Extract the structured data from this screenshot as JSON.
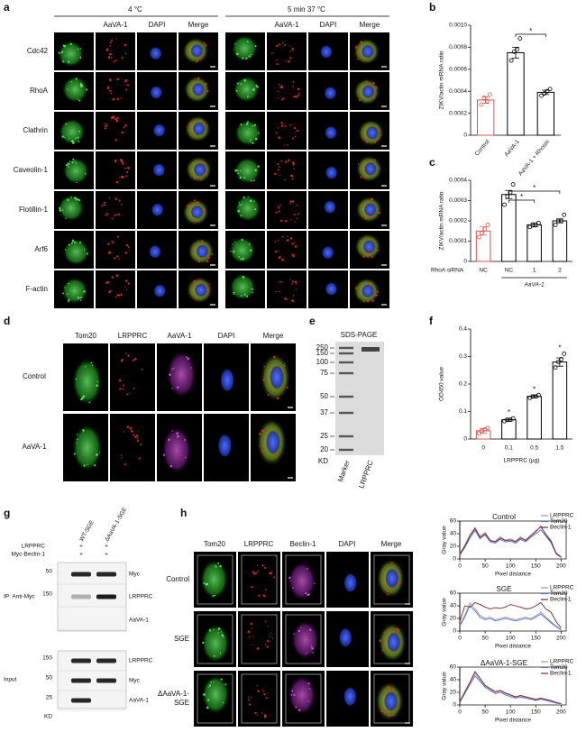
{
  "panel_labels": [
    "a",
    "b",
    "c",
    "d",
    "e",
    "f",
    "g",
    "h"
  ],
  "panel_a": {
    "groups": [
      "4 °C",
      "5 min 37 °C"
    ],
    "columns": [
      "AaVA-1",
      "DAPI",
      "Merge"
    ],
    "rows": [
      "Cdc42",
      "RhoA",
      "Clathrin",
      "Caveolin-1",
      "Flotillin-1",
      "Arf6",
      "F-actin"
    ]
  },
  "panel_d": {
    "columns": [
      "Tom20",
      "LRPPRC",
      "AaVA-1",
      "DAPI",
      "Merge"
    ],
    "rows": [
      "Control",
      "AaVA-1"
    ]
  },
  "panel_e": {
    "title": "SDS-PAGE",
    "markers": [
      250,
      150,
      100,
      75,
      50,
      37,
      25,
      20
    ],
    "unit": "KD",
    "lanes": [
      "Marker",
      "LRPPRC"
    ]
  },
  "panel_g": {
    "lanes": [
      "WT-SGE",
      "ΔAaVA-1-SGE"
    ],
    "conditions": [
      {
        "label": "LRPPRC",
        "marks": [
          "+",
          "+"
        ]
      },
      {
        "label": "Myc-Beclin-1",
        "marks": [
          "+",
          "+"
        ]
      }
    ],
    "sections": [
      {
        "label": "IP: Anti-Myc",
        "blots": [
          {
            "marker": 50,
            "label": "Myc"
          },
          {
            "marker": 150,
            "label": "LRPPRC"
          },
          {
            "label": "AaVA-1"
          }
        ]
      },
      {
        "label": "Input",
        "blots": [
          {
            "marker": 150,
            "label": "LRPPRC"
          },
          {
            "marker": 50,
            "label": "Myc"
          },
          {
            "marker": 25,
            "label": "AaVA-1"
          }
        ]
      }
    ],
    "unit": "KD"
  },
  "panel_h": {
    "columns": [
      "Tom20",
      "LRPPRC",
      "Beclin-1",
      "DAPI",
      "Merge"
    ],
    "rows": [
      "Control",
      "SGE",
      "ΔAaVA-1-SGE"
    ]
  },
  "chart_data": [
    {
      "type": "bar",
      "y_label": "ZIKV/actin mRNA ratio",
      "categories": [
        "Control",
        "AaVA-1",
        "AaVA-1 + Rhosin"
      ],
      "values": [
        0.00032,
        0.00075,
        0.00039
      ],
      "errors": [
        3e-05,
        5e-05,
        2e-05
      ],
      "points": [
        [
          0.00028,
          0.00034,
          0.00031,
          0.00037
        ],
        [
          0.00068,
          0.00076,
          0.00078,
          0.00088
        ],
        [
          0.00036,
          0.00038,
          0.0004,
          0.00042
        ]
      ],
      "colors": [
        "#d9534f",
        "#000000",
        "#000000"
      ],
      "significance": [
        "*"
      ],
      "ylim": [
        0,
        0.001
      ],
      "yticks": [
        0,
        0.0002,
        0.0004,
        0.0006,
        0.0008,
        {
          "value": 0.001,
          "label": "0.0010"
        }
      ]
    },
    {
      "type": "bar",
      "y_label": "ZIKV/actin mRNA ratio",
      "x_title": "RhoA siRNA",
      "group_label": "AaVA-1",
      "categories": [
        "NC",
        "NC",
        "1",
        "2"
      ],
      "values": [
        0.00015,
        0.00033,
        0.00018,
        0.0002
      ],
      "errors": [
        2e-05,
        2e-05,
        1e-05,
        1e-05
      ],
      "points": [
        [
          0.00012,
          0.00014,
          0.00016,
          0.00018
        ],
        [
          0.00028,
          0.00032,
          0.00034,
          0.00038
        ],
        [
          0.00017,
          0.00018,
          0.00018,
          0.00019
        ],
        [
          0.00018,
          0.0002,
          0.0002,
          0.00023
        ]
      ],
      "colors": [
        "#d9534f",
        "#000000",
        "#000000",
        "#000000"
      ],
      "significance": [
        "*",
        "*"
      ],
      "ylim": [
        0,
        0.0004
      ],
      "yticks": [
        0,
        0.0001,
        0.0002,
        0.0003,
        0.0004
      ]
    },
    {
      "type": "bar",
      "y_label": "OD450 value",
      "x_label": "LRPPRC (µg)",
      "categories": [
        "0",
        "0.1",
        "0.5",
        "1.5"
      ],
      "values": [
        0.03,
        0.07,
        0.155,
        0.28
      ],
      "errors": [
        0.008,
        0.005,
        0.005,
        0.015
      ],
      "points": [
        [
          0.02,
          0.03,
          0.035,
          0.04
        ],
        [
          0.065,
          0.07,
          0.07,
          0.075
        ],
        [
          0.15,
          0.155,
          0.155,
          0.16
        ],
        [
          0.26,
          0.28,
          0.29,
          0.31
        ]
      ],
      "colors": [
        "#d9534f",
        "#000000",
        "#000000",
        "#000000"
      ],
      "stars": [
        null,
        "*",
        "*",
        "*"
      ],
      "ylim": [
        0,
        0.4
      ],
      "yticks": [
        0,
        0.1,
        0.2,
        0.3,
        0.4
      ]
    },
    {
      "type": "line",
      "title": "Control",
      "x_label": "Pixel distance",
      "y_label": "Gray value",
      "x": [
        0,
        10,
        20,
        30,
        40,
        50,
        60,
        70,
        80,
        90,
        100,
        110,
        120,
        130,
        140,
        150,
        160,
        170,
        180,
        190,
        200
      ],
      "series": [
        {
          "name": "LRPPRC",
          "color": "#9a9a9a",
          "values": [
            8,
            22,
            38,
            50,
            36,
            42,
            30,
            28,
            35,
            30,
            32,
            28,
            35,
            30,
            38,
            45,
            50,
            40,
            30,
            10,
            3
          ]
        },
        {
          "name": "Tom20",
          "color": "#5b6fd6",
          "values": [
            6,
            18,
            33,
            45,
            32,
            38,
            27,
            25,
            31,
            27,
            28,
            25,
            31,
            27,
            34,
            40,
            46,
            36,
            26,
            8,
            2
          ]
        },
        {
          "name": "Beclin-1",
          "color": "#7a2424",
          "values": [
            7,
            20,
            36,
            48,
            34,
            40,
            29,
            27,
            33,
            29,
            30,
            27,
            33,
            29,
            36,
            43,
            52,
            38,
            28,
            9,
            3
          ]
        }
      ],
      "xlim": [
        0,
        210
      ],
      "ylim": [
        0,
        60
      ],
      "xticks": [
        0,
        50,
        100,
        150,
        200
      ],
      "yticks": [
        0,
        20,
        40,
        60
      ]
    },
    {
      "type": "line",
      "title": "SGE",
      "x_label": "Pixel distance",
      "y_label": "Gray value",
      "x": [
        0,
        10,
        20,
        30,
        40,
        50,
        60,
        70,
        80,
        90,
        100,
        110,
        120,
        130,
        140,
        150,
        160,
        170,
        180,
        190,
        200
      ],
      "series": [
        {
          "name": "LRPPRC",
          "color": "#9a9a9a",
          "values": [
            10,
            25,
            45,
            35,
            25,
            20,
            22,
            18,
            20,
            22,
            20,
            18,
            20,
            22,
            20,
            24,
            30,
            22,
            15,
            8,
            3
          ]
        },
        {
          "name": "Tom20",
          "color": "#5b6fd6",
          "values": [
            8,
            22,
            40,
            32,
            22,
            18,
            20,
            16,
            18,
            20,
            18,
            16,
            18,
            20,
            18,
            22,
            27,
            20,
            13,
            7,
            2
          ]
        },
        {
          "name": "Beclin-1",
          "color": "#7a2424",
          "values": [
            15,
            40,
            38,
            45,
            42,
            38,
            35,
            37,
            36,
            38,
            42,
            40,
            38,
            35,
            36,
            40,
            45,
            35,
            30,
            15,
            5
          ]
        }
      ],
      "xlim": [
        0,
        210
      ],
      "ylim": [
        0,
        60
      ],
      "xticks": [
        0,
        50,
        100,
        150,
        200
      ],
      "yticks": [
        0,
        20,
        40,
        60
      ]
    },
    {
      "type": "line",
      "title": "ΔAaVA-1-SGE",
      "x_label": "Pixel distance",
      "y_label": "Gray value",
      "x": [
        0,
        10,
        20,
        30,
        40,
        50,
        60,
        70,
        80,
        90,
        100,
        110,
        120,
        130,
        140,
        150,
        160,
        170,
        180,
        190,
        200
      ],
      "series": [
        {
          "name": "LRPPRC",
          "color": "#9a9a9a",
          "values": [
            5,
            20,
            35,
            50,
            40,
            30,
            25,
            20,
            22,
            18,
            15,
            12,
            14,
            12,
            10,
            8,
            10,
            8,
            6,
            3,
            2
          ]
        },
        {
          "name": "Tom20",
          "color": "#5b6fd6",
          "values": [
            4,
            18,
            32,
            46,
            37,
            28,
            23,
            18,
            20,
            16,
            13,
            11,
            12,
            11,
            9,
            7,
            9,
            7,
            5,
            3,
            2
          ]
        },
        {
          "name": "Beclin-1",
          "color": "#7a2424",
          "values": [
            5,
            21,
            36,
            53,
            42,
            31,
            26,
            21,
            23,
            19,
            16,
            13,
            15,
            13,
            11,
            9,
            11,
            9,
            7,
            4,
            2
          ]
        }
      ],
      "xlim": [
        0,
        210
      ],
      "ylim": [
        0,
        60
      ],
      "xticks": [
        0,
        50,
        100,
        150,
        200
      ],
      "yticks": [
        0,
        20,
        40,
        60
      ]
    }
  ]
}
